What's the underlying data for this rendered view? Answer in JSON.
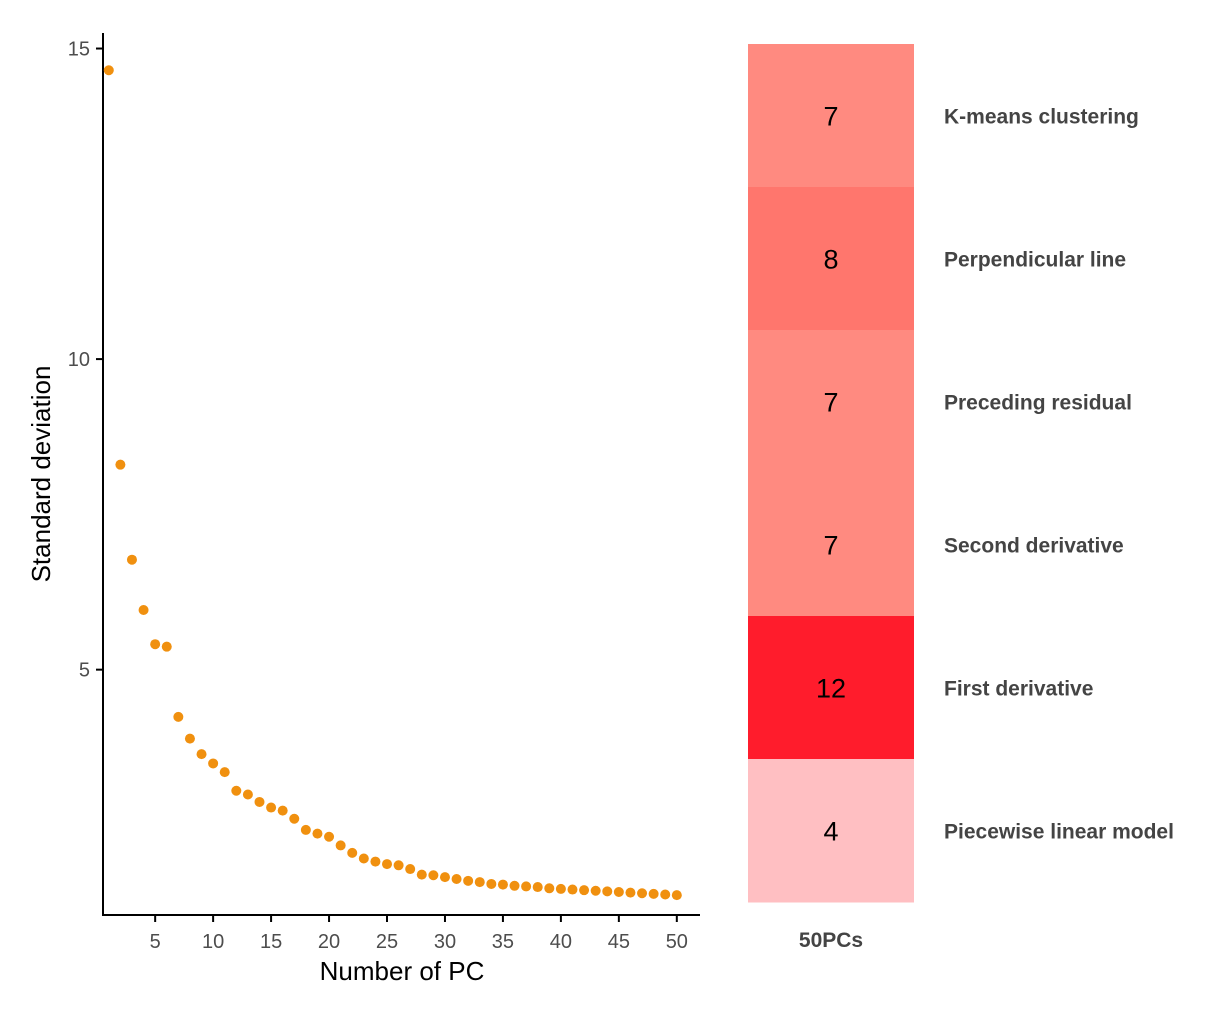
{
  "chart_data": [
    {
      "type": "scatter",
      "title": "",
      "xlabel": "Number of PC",
      "ylabel": "Standard deviation",
      "xlim": [
        0.5,
        52
      ],
      "ylim": [
        1.05,
        15.25
      ],
      "xticks": [
        5,
        10,
        15,
        20,
        25,
        30,
        35,
        40,
        45,
        50
      ],
      "xtick_labels": [
        "5",
        "10",
        "15",
        "20",
        "25",
        "30",
        "35",
        "40",
        "45",
        "50"
      ],
      "yticks": [
        5,
        10,
        15
      ],
      "ytick_labels": [
        "5",
        "10",
        "15"
      ],
      "point_color": "#F0900F",
      "grid": false,
      "series": [
        {
          "name": "Standard deviation",
          "x": [
            1,
            2,
            3,
            4,
            5,
            6,
            7,
            8,
            9,
            10,
            11,
            12,
            13,
            14,
            15,
            16,
            17,
            18,
            19,
            20,
            21,
            22,
            23,
            24,
            25,
            26,
            27,
            28,
            29,
            30,
            31,
            32,
            33,
            34,
            35,
            36,
            37,
            38,
            39,
            40,
            41,
            42,
            43,
            44,
            45,
            46,
            47,
            48,
            49,
            50
          ],
          "y": [
            14.65,
            8.3,
            6.77,
            5.96,
            5.41,
            5.37,
            4.24,
            3.89,
            3.64,
            3.49,
            3.35,
            3.05,
            2.99,
            2.87,
            2.78,
            2.73,
            2.6,
            2.42,
            2.36,
            2.31,
            2.17,
            2.05,
            1.96,
            1.91,
            1.87,
            1.85,
            1.79,
            1.7,
            1.69,
            1.66,
            1.63,
            1.6,
            1.58,
            1.55,
            1.54,
            1.52,
            1.51,
            1.5,
            1.48,
            1.47,
            1.46,
            1.45,
            1.44,
            1.43,
            1.42,
            1.41,
            1.4,
            1.39,
            1.38,
            1.37
          ]
        }
      ]
    },
    {
      "type": "heatmap",
      "column": "50PCs",
      "rows": [
        "K-means clustering",
        "Perpendicular line",
        "Preceding residual",
        "Second derivative",
        "First derivative",
        "Piecewise linear model"
      ],
      "values": [
        7,
        8,
        7,
        7,
        12,
        4
      ],
      "colors": [
        "#FF8A80",
        "#FF766D",
        "#FF8A80",
        "#FF8A80",
        "#FF1C2C",
        "#FFBFC2"
      ]
    }
  ]
}
